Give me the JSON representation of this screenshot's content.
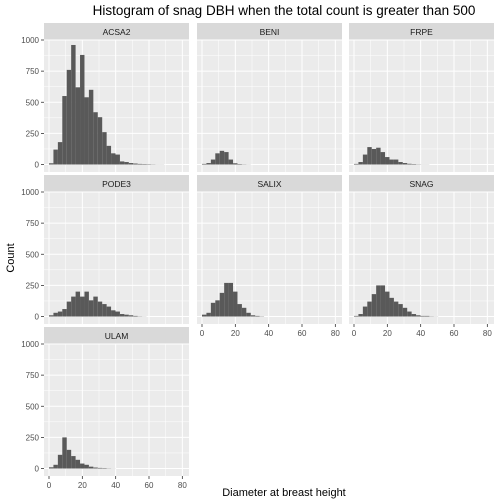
{
  "chart_data": {
    "type": "bar",
    "title": "Histogram of snag DBH when the total count is greater than 500",
    "xlabel": "Diameter at breast height",
    "ylabel": "Count",
    "xlim": [
      -3,
      84
    ],
    "ylim": [
      -60,
      1000
    ],
    "x_ticks": [
      0,
      20,
      40,
      60,
      80
    ],
    "y_ticks": [
      0,
      250,
      500,
      750,
      1000
    ],
    "bin_start": 0,
    "bin_width": 2.66,
    "colors": {
      "bar": "#595959",
      "panel": "#ebebeb",
      "strip": "#d9d9d9",
      "grid": "#ffffff"
    },
    "panels": [
      {
        "name": "ACSA2",
        "values": [
          10,
          120,
          180,
          550,
          760,
          960,
          620,
          880,
          540,
          600,
          420,
          380,
          260,
          150,
          90,
          80,
          25,
          20,
          12,
          8,
          5,
          4,
          3,
          2,
          1,
          1
        ]
      },
      {
        "name": "BENI",
        "values": [
          5,
          12,
          40,
          90,
          110,
          100,
          40,
          10,
          4,
          2,
          1,
          0,
          0,
          0,
          0,
          0,
          0,
          0,
          0,
          0,
          0,
          0,
          0,
          0,
          0,
          0
        ]
      },
      {
        "name": "FRPE",
        "values": [
          5,
          20,
          80,
          140,
          125,
          135,
          100,
          60,
          40,
          40,
          20,
          12,
          6,
          4,
          2,
          1,
          1,
          0,
          0,
          0,
          0,
          0,
          0,
          0,
          0,
          0
        ]
      },
      {
        "name": "PODE3",
        "values": [
          10,
          30,
          40,
          60,
          120,
          160,
          200,
          160,
          200,
          130,
          160,
          120,
          100,
          80,
          50,
          40,
          20,
          15,
          10,
          5,
          2,
          1,
          0,
          0,
          0,
          0
        ]
      },
      {
        "name": "SALIX",
        "values": [
          15,
          30,
          110,
          130,
          190,
          270,
          270,
          200,
          100,
          70,
          30,
          10,
          5,
          2,
          0,
          0,
          0,
          0,
          0,
          0,
          0,
          0,
          0,
          0,
          0,
          0
        ]
      },
      {
        "name": "SNAG",
        "values": [
          5,
          20,
          80,
          120,
          180,
          250,
          250,
          200,
          150,
          120,
          100,
          70,
          40,
          20,
          10,
          5,
          5,
          2,
          1,
          0,
          0,
          0,
          0,
          0,
          0,
          0
        ]
      },
      {
        "name": "ULAM",
        "values": [
          10,
          30,
          110,
          250,
          150,
          100,
          70,
          40,
          30,
          15,
          8,
          5,
          4,
          2,
          1,
          0,
          0,
          0,
          0,
          0,
          0,
          0,
          0,
          0,
          0,
          0
        ]
      }
    ]
  }
}
